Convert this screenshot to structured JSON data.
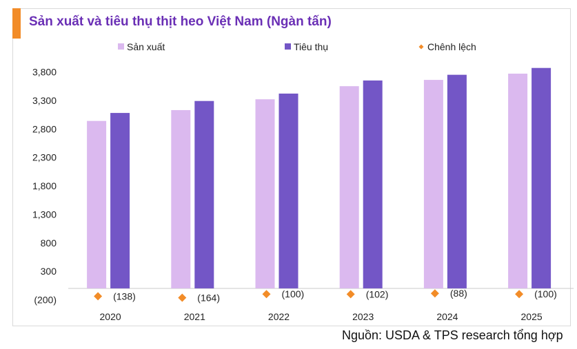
{
  "chart_data": {
    "type": "bar",
    "title": "Sản xuất và tiêu thụ thịt heo Việt Nam (Ngàn tấn)",
    "source": "Nguồn: USDA & TPS research tổng hợp",
    "categories": [
      "2020",
      "2021",
      "2022",
      "2023",
      "2024",
      "2025"
    ],
    "series": [
      {
        "name": "Sản xuất",
        "type": "bar",
        "color": "#dbb9ef",
        "values": [
          2940,
          3130,
          3320,
          3550,
          3660,
          3770
        ]
      },
      {
        "name": "Tiêu thụ",
        "type": "bar",
        "color": "#7356c6",
        "values": [
          3080,
          3290,
          3420,
          3650,
          3750,
          3870
        ]
      },
      {
        "name": "Chênh lệch",
        "type": "marker",
        "color": "#f28c28",
        "values": [
          -138,
          -164,
          -100,
          -102,
          -88,
          -100
        ]
      }
    ],
    "diff_labels": [
      "(138)",
      "(164)",
      "(100)",
      "(102)",
      "(88)",
      "(100)"
    ],
    "yticks": [
      {
        "value": -200,
        "label": "(200)"
      },
      {
        "value": 300,
        "label": "300"
      },
      {
        "value": 800,
        "label": "800"
      },
      {
        "value": 1300,
        "label": "1,300"
      },
      {
        "value": 1800,
        "label": "1,800"
      },
      {
        "value": 2300,
        "label": "2,300"
      },
      {
        "value": 2800,
        "label": "2,800"
      },
      {
        "value": 3300,
        "label": "3,300"
      },
      {
        "value": 3800,
        "label": "3,800"
      }
    ],
    "ylim": [
      -200,
      3900
    ],
    "baseline": 0,
    "grid": false,
    "legend_position": "top"
  }
}
